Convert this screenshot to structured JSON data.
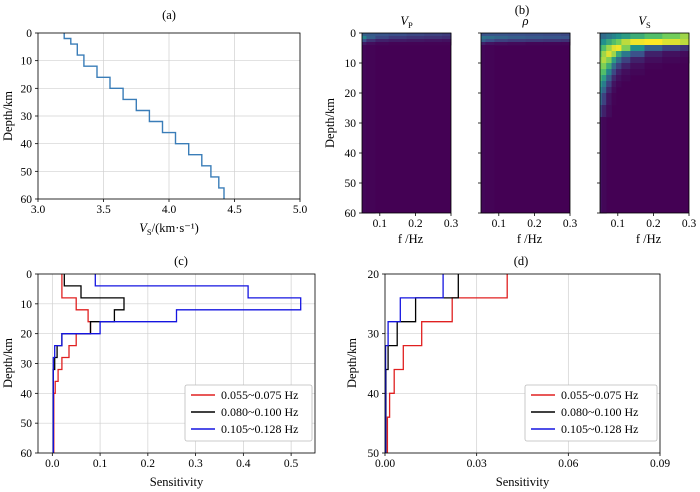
{
  "chart_data": [
    {
      "id": "a",
      "panel_label": "(a)",
      "type": "line",
      "title": "",
      "xlabel_main": "V",
      "xlabel_sub": "S",
      "xlabel_rest": "/(km·s⁻¹)",
      "ylabel": "Depth/km",
      "xlim": [
        3.0,
        5.0
      ],
      "ylim": [
        60,
        0
      ],
      "xticks": [
        "3.0",
        "3.5",
        "4.0",
        "4.5",
        "5.0"
      ],
      "yticks": [
        "0",
        "10",
        "20",
        "30",
        "40",
        "50",
        "60"
      ],
      "grid": true,
      "series": [
        {
          "name": "",
          "color": "#3a7db8",
          "step_profile": {
            "depths": [
              0,
              2,
              4,
              8,
              12,
              16,
              20,
              24,
              28,
              32,
              36,
              40,
              44,
              48,
              52,
              56,
              60
            ],
            "values": [
              3.2,
              3.25,
              3.3,
              3.35,
              3.45,
              3.55,
              3.65,
              3.75,
              3.85,
              3.95,
              4.05,
              4.15,
              4.25,
              4.32,
              4.38,
              4.42
            ]
          }
        }
      ]
    },
    {
      "id": "b",
      "panel_label": "(b)",
      "type": "heatmap",
      "ylabel": "Depth/km",
      "xlabel": "f /Hz",
      "xlim": [
        0.05,
        0.3
      ],
      "ylim": [
        60,
        0
      ],
      "xticks": [
        "0.1",
        "0.2",
        "0.3"
      ],
      "yticks": [
        "0",
        "10",
        "20",
        "30",
        "40",
        "50",
        "60"
      ],
      "colormap": [
        "#440154",
        "#3b528b",
        "#21918c",
        "#5ec962",
        "#fde725"
      ],
      "subplots": [
        {
          "title_main": "V",
          "title_sub": "P",
          "description": "P-wave velocity sensitivity",
          "freq": [
            0.05,
            0.075,
            0.1,
            0.15,
            0.2,
            0.25,
            0.3
          ],
          "depth_edges": [
            0,
            1,
            2,
            3,
            4,
            60
          ],
          "values": [
            [
              0.3,
              0.28,
              0.26,
              0.24,
              0.22,
              0.2,
              0.18
            ],
            [
              0.45,
              0.3,
              0.22,
              0.18,
              0.16,
              0.15,
              0.14
            ],
            [
              0.25,
              0.15,
              0.1,
              0.08,
              0.07,
              0.06,
              0.05
            ],
            [
              0.08,
              0.04,
              0.02,
              0.01,
              0.01,
              0.01,
              0.01
            ],
            [
              0.02,
              0.01,
              0.0,
              0.0,
              0.0,
              0.0,
              0.0
            ]
          ]
        },
        {
          "title_main": "ρ",
          "title_sub": "",
          "description": "density sensitivity",
          "freq": [
            0.05,
            0.075,
            0.1,
            0.15,
            0.2,
            0.25,
            0.3
          ],
          "depth_edges": [
            0,
            1,
            2,
            3,
            4,
            60
          ],
          "values": [
            [
              0.25,
              0.26,
              0.26,
              0.25,
              0.24,
              0.23,
              0.22
            ],
            [
              0.38,
              0.36,
              0.33,
              0.3,
              0.28,
              0.27,
              0.26
            ],
            [
              0.3,
              0.24,
              0.2,
              0.18,
              0.17,
              0.16,
              0.15
            ],
            [
              0.1,
              0.06,
              0.04,
              0.03,
              0.02,
              0.02,
              0.02
            ],
            [
              0.02,
              0.01,
              0.0,
              0.0,
              0.0,
              0.0,
              0.0
            ]
          ]
        },
        {
          "title_main": "V",
          "title_sub": "S",
          "description": "S-wave velocity sensitivity",
          "freq": [
            0.05,
            0.06,
            0.075,
            0.09,
            0.1,
            0.12,
            0.15,
            0.2,
            0.25,
            0.3
          ],
          "depth_edges": [
            0,
            2,
            4,
            6,
            8,
            10,
            12,
            14,
            16,
            18,
            20,
            24,
            28,
            60
          ],
          "values": [
            [
              0.35,
              0.35,
              0.4,
              0.45,
              0.5,
              0.55,
              0.62,
              0.7,
              0.78,
              0.85
            ],
            [
              0.45,
              0.5,
              0.6,
              0.7,
              0.78,
              0.9,
              0.98,
              1.0,
              0.95,
              0.9
            ],
            [
              0.6,
              0.7,
              0.85,
              0.95,
              0.98,
              0.8,
              0.5,
              0.3,
              0.2,
              0.15
            ],
            [
              0.75,
              0.85,
              0.95,
              0.85,
              0.6,
              0.4,
              0.25,
              0.1,
              0.05,
              0.03
            ],
            [
              0.82,
              0.88,
              0.8,
              0.55,
              0.35,
              0.2,
              0.1,
              0.04,
              0.02,
              0.01
            ],
            [
              0.78,
              0.8,
              0.62,
              0.35,
              0.2,
              0.1,
              0.04,
              0.01,
              0.0,
              0.0
            ],
            [
              0.72,
              0.7,
              0.45,
              0.22,
              0.1,
              0.04,
              0.02,
              0.0,
              0.0,
              0.0
            ],
            [
              0.65,
              0.55,
              0.3,
              0.12,
              0.05,
              0.02,
              0.0,
              0.0,
              0.0,
              0.0
            ],
            [
              0.55,
              0.42,
              0.2,
              0.06,
              0.02,
              0.0,
              0.0,
              0.0,
              0.0,
              0.0
            ],
            [
              0.45,
              0.32,
              0.12,
              0.03,
              0.0,
              0.0,
              0.0,
              0.0,
              0.0,
              0.0
            ],
            [
              0.35,
              0.2,
              0.06,
              0.01,
              0.0,
              0.0,
              0.0,
              0.0,
              0.0,
              0.0
            ],
            [
              0.2,
              0.1,
              0.03,
              0.0,
              0.0,
              0.0,
              0.0,
              0.0,
              0.0,
              0.0
            ],
            [
              0.05,
              0.02,
              0.0,
              0.0,
              0.0,
              0.0,
              0.0,
              0.0,
              0.0,
              0.0
            ]
          ]
        }
      ]
    },
    {
      "id": "c",
      "panel_label": "(c)",
      "type": "line",
      "xlabel": "Sensitivity",
      "ylabel": "Depth/km",
      "xlim": [
        -0.03,
        0.55
      ],
      "ylim": [
        60,
        0
      ],
      "xticks": [
        "0.0",
        "0.1",
        "0.2",
        "0.3",
        "0.4",
        "0.5"
      ],
      "yticks": [
        "0",
        "10",
        "20",
        "30",
        "40",
        "50",
        "60"
      ],
      "grid": true,
      "legend": "bottom-right",
      "series": [
        {
          "name": "0.055~0.075 Hz",
          "color": "#e02020",
          "depths": [
            0,
            8,
            12,
            16,
            20,
            24,
            28,
            32,
            36,
            40,
            60
          ],
          "values": [
            0.02,
            0.05,
            0.075,
            0.08,
            0.05,
            0.035,
            0.02,
            0.012,
            0.006,
            0.003
          ]
        },
        {
          "name": "0.080~0.100 Hz",
          "color": "#000000",
          "depths": [
            0,
            4,
            8,
            12,
            16,
            20,
            24,
            28,
            32,
            60
          ],
          "values": [
            0.025,
            0.06,
            0.15,
            0.13,
            0.08,
            0.02,
            0.01,
            0.005,
            0.002
          ]
        },
        {
          "name": "0.105~0.128 Hz",
          "color": "#1515e0",
          "depths": [
            0,
            4,
            8,
            12,
            16,
            20,
            24,
            28,
            60
          ],
          "values": [
            0.09,
            0.41,
            0.52,
            0.26,
            0.1,
            0.02,
            0.005,
            0.002
          ]
        }
      ]
    },
    {
      "id": "d",
      "panel_label": "(d)",
      "type": "line",
      "xlabel": "Sensitivity",
      "ylabel": "Depth/km",
      "xlim": [
        0.0,
        0.09
      ],
      "ylim": [
        50,
        20
      ],
      "xticks": [
        "0.00",
        "0.03",
        "0.06",
        "0.09"
      ],
      "yticks": [
        "20",
        "30",
        "40",
        "50"
      ],
      "grid": true,
      "legend": "bottom-right",
      "series": [
        {
          "name": "0.055~0.075 Hz",
          "color": "#e02020",
          "depths": [
            20,
            24,
            28,
            32,
            36,
            40,
            44,
            50
          ],
          "values": [
            0.04,
            0.022,
            0.012,
            0.006,
            0.003,
            0.0015,
            0.0008
          ]
        },
        {
          "name": "0.080~0.100 Hz",
          "color": "#000000",
          "depths": [
            20,
            24,
            28,
            32,
            36,
            50
          ],
          "values": [
            0.024,
            0.01,
            0.004,
            0.001,
            0.0003
          ]
        },
        {
          "name": "0.105~0.128 Hz",
          "color": "#1515e0",
          "depths": [
            20,
            24,
            28,
            32,
            50
          ],
          "values": [
            0.019,
            0.005,
            0.001,
            0.0002
          ]
        }
      ]
    }
  ]
}
